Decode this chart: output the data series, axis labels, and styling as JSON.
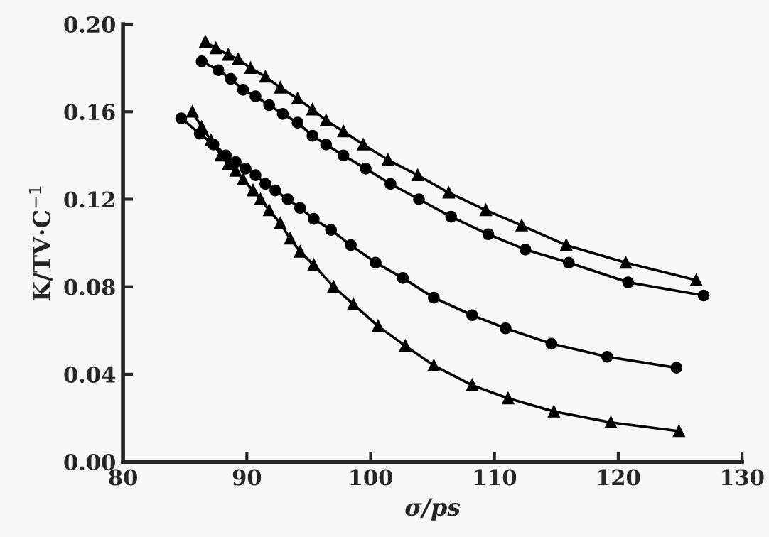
{
  "chart_data": {
    "type": "line",
    "xlabel": "σ/ps",
    "ylabel": "K/TV·C$^{−1}$",
    "xlim": [
      80,
      130
    ],
    "xticks": [
      80,
      90,
      100,
      110,
      120,
      130
    ],
    "ylim": [
      0,
      0.2
    ],
    "yticks": [
      {
        "value": 0,
        "label": "0.00"
      },
      {
        "value": 0.04,
        "label": "0.04"
      },
      {
        "value": 0.08,
        "label": "0.08"
      },
      {
        "value": 0.12,
        "label": "0.12"
      },
      {
        "value": 0.16,
        "label": "0.16"
      },
      {
        "value": 0.2,
        "label": "0.20"
      }
    ],
    "grid": false,
    "legend": false,
    "series": [
      {
        "color": "#000000",
        "marker": "triangle",
        "x": [
          86.65,
          87.5,
          88.5,
          89.3,
          90.3,
          91.5,
          92.7,
          94.1,
          95.3,
          96.4,
          97.8,
          99.4,
          101.4,
          103.8,
          106.3,
          109.3,
          112.2,
          115.8,
          120.6,
          126.3
        ],
        "values": [
          0.192,
          0.189,
          0.186,
          0.184,
          0.18,
          0.176,
          0.171,
          0.166,
          0.161,
          0.156,
          0.151,
          0.145,
          0.138,
          0.131,
          0.123,
          0.115,
          0.108,
          0.099,
          0.091,
          0.083
        ]
      },
      {
        "color": "#000000",
        "marker": "circle",
        "x": [
          86.35,
          87.7,
          88.7,
          89.7,
          90.7,
          91.8,
          92.9,
          94.1,
          95.3,
          96.4,
          97.8,
          99.6,
          101.6,
          103.9,
          106.5,
          109.5,
          112.5,
          116.0,
          120.8,
          126.9
        ],
        "values": [
          0.183,
          0.179,
          0.175,
          0.17,
          0.167,
          0.163,
          0.159,
          0.155,
          0.149,
          0.145,
          0.14,
          0.134,
          0.127,
          0.12,
          0.112,
          0.104,
          0.097,
          0.091,
          0.082,
          0.076
        ]
      },
      {
        "color": "#000000",
        "marker": "circle",
        "x": [
          84.7,
          86.2,
          87.3,
          88.3,
          89.1,
          89.9,
          90.7,
          91.5,
          92.3,
          93.3,
          94.3,
          95.4,
          96.8,
          98.4,
          100.4,
          102.6,
          105.1,
          108.2,
          110.9,
          114.6,
          119.1,
          124.7
        ],
        "values": [
          0.157,
          0.15,
          0.145,
          0.14,
          0.137,
          0.134,
          0.131,
          0.127,
          0.124,
          0.12,
          0.116,
          0.111,
          0.106,
          0.099,
          0.091,
          0.084,
          0.075,
          0.067,
          0.061,
          0.054,
          0.048,
          0.043
        ]
      },
      {
        "color": "#000000",
        "marker": "triangle",
        "x": [
          85.6,
          86.35,
          87.1,
          87.9,
          88.5,
          89.1,
          89.7,
          90.5,
          91.1,
          91.8,
          92.7,
          93.5,
          94.3,
          95.4,
          97.0,
          98.6,
          100.6,
          102.8,
          105.1,
          108.2,
          111.1,
          114.8,
          119.4,
          124.9
        ],
        "values": [
          0.16,
          0.153,
          0.147,
          0.14,
          0.136,
          0.133,
          0.129,
          0.124,
          0.12,
          0.115,
          0.109,
          0.102,
          0.096,
          0.09,
          0.08,
          0.072,
          0.062,
          0.053,
          0.044,
          0.035,
          0.029,
          0.023,
          0.018,
          0.014
        ]
      }
    ]
  }
}
